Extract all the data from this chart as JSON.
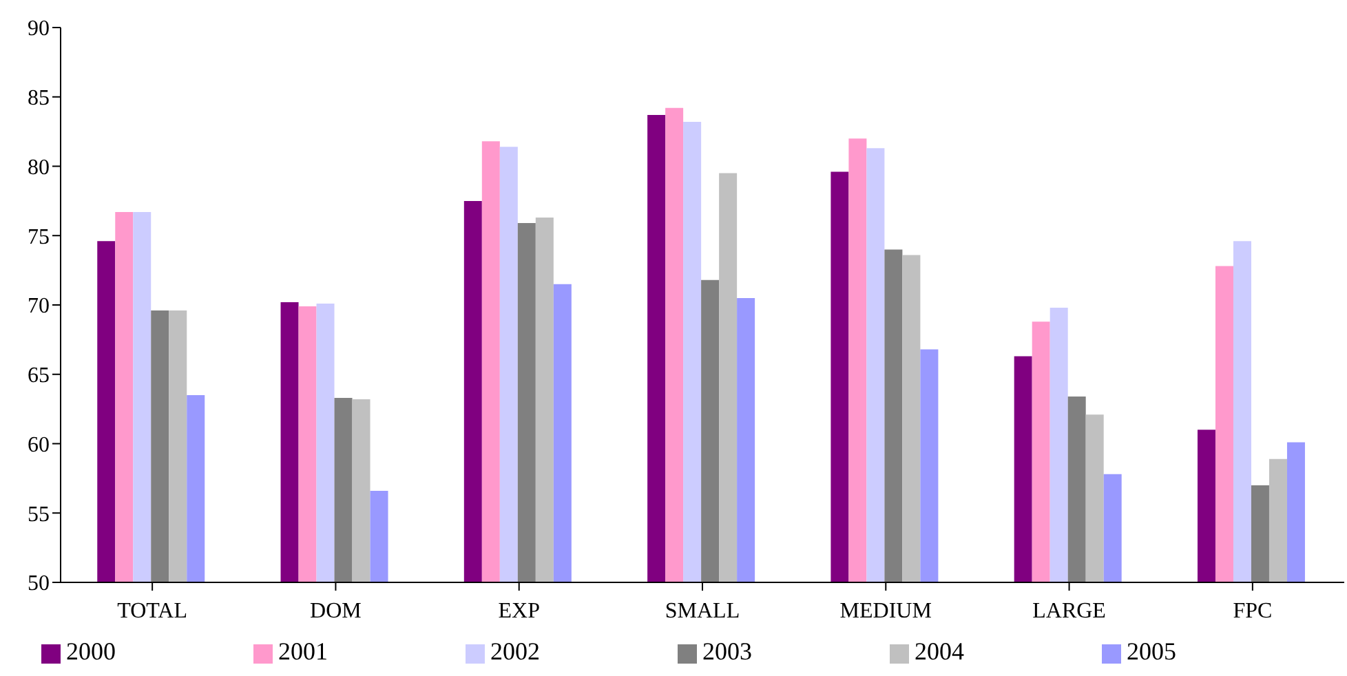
{
  "chart_data": {
    "type": "bar",
    "categories": [
      "TOTAL",
      "DOM",
      "EXP",
      "SMALL",
      "MEDIUM",
      "LARGE",
      "FPC"
    ],
    "series": [
      {
        "name": "2000",
        "color": "#800080",
        "values": [
          74.6,
          70.2,
          77.5,
          83.7,
          79.6,
          66.3,
          61.0
        ]
      },
      {
        "name": "2001",
        "color": "#ff99cc",
        "values": [
          76.7,
          69.9,
          81.8,
          84.2,
          82.0,
          68.8,
          72.8
        ]
      },
      {
        "name": "2002",
        "color": "#ccccff",
        "values": [
          76.7,
          70.1,
          81.4,
          83.2,
          81.3,
          69.8,
          74.6
        ]
      },
      {
        "name": "2003",
        "color": "#808080",
        "values": [
          69.6,
          63.3,
          75.9,
          71.8,
          74.0,
          63.4,
          57.0
        ]
      },
      {
        "name": "2004",
        "color": "#c0c0c0",
        "values": [
          69.6,
          63.2,
          76.3,
          79.5,
          73.6,
          62.1,
          58.9
        ]
      },
      {
        "name": "2005",
        "color": "#9999ff",
        "values": [
          63.5,
          56.6,
          71.5,
          70.5,
          66.8,
          57.8,
          60.1
        ]
      }
    ],
    "ylim": [
      50,
      90
    ],
    "yticks": [
      50,
      55,
      60,
      65,
      70,
      75,
      80,
      85,
      90
    ],
    "grid": false,
    "legend": "bottom"
  }
}
